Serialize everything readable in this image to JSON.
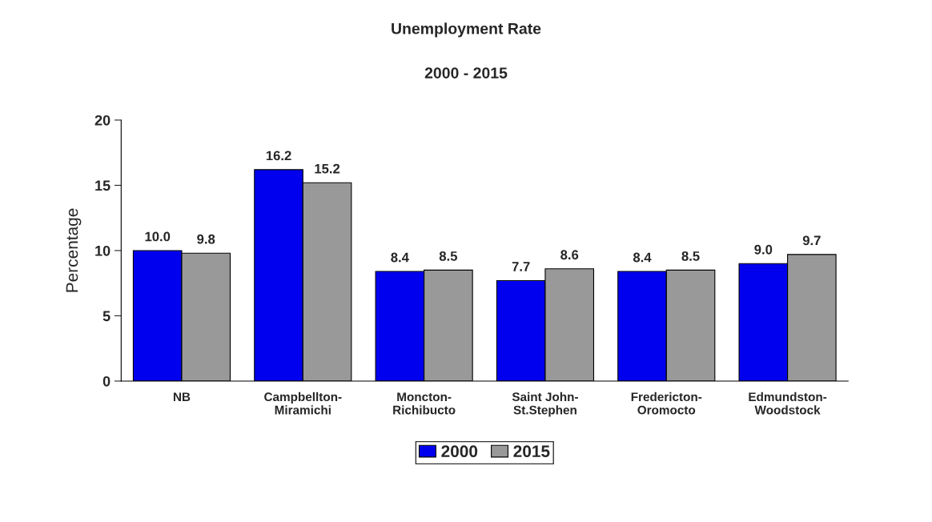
{
  "chart_data": {
    "type": "bar",
    "title": "Unemployment Rate",
    "subtitle": "2000 - 2015",
    "ylabel": "Percentage",
    "categories": [
      "NB",
      "Campbellton-\nMiramichi",
      "Moncton-\nRichibucto",
      "Saint John-\nSt.Stephen",
      "Fredericton-\nOromocto",
      "Edmundston-\nWoodstock"
    ],
    "series": [
      {
        "name": "2000",
        "color": "#0000ee",
        "values": [
          10.0,
          16.2,
          8.4,
          7.7,
          8.4,
          9.0
        ],
        "value_labels": [
          "10.0",
          "16.2",
          "8.4",
          "7.7",
          "8.4",
          "9.0"
        ]
      },
      {
        "name": "2015",
        "color": "#999999",
        "values": [
          9.8,
          15.2,
          8.5,
          8.6,
          8.5,
          9.7
        ],
        "value_labels": [
          "9.8",
          "15.2",
          "8.5",
          "8.6",
          "8.5",
          "9.7"
        ]
      }
    ],
    "ylim": [
      0,
      20
    ],
    "yticks": [
      0,
      5,
      10,
      15,
      20
    ],
    "grid": false,
    "legend": "bottom"
  }
}
